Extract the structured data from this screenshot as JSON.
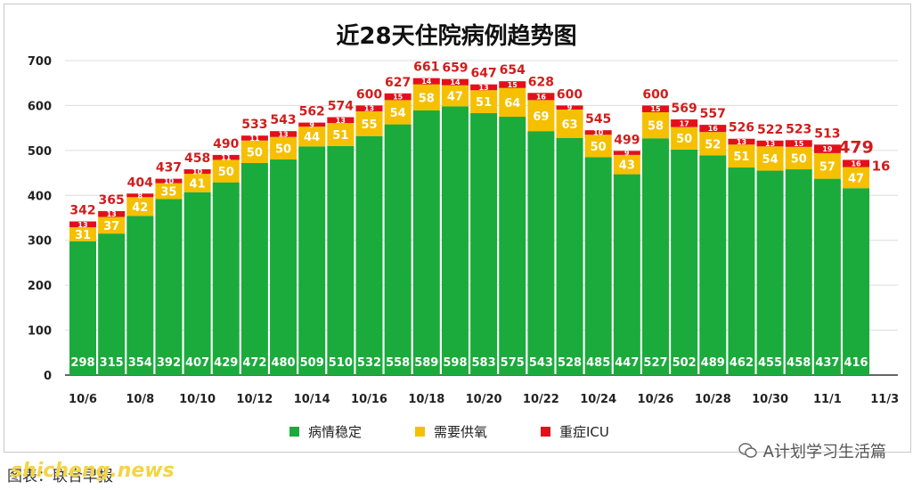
{
  "chart_data": {
    "type": "bar",
    "stacked": true,
    "title": "近28天住院病例趋势图",
    "categories": [
      "10/6",
      "10/7",
      "10/8",
      "10/9",
      "10/10",
      "10/11",
      "10/12",
      "10/13",
      "10/14",
      "10/15",
      "10/16",
      "10/17",
      "10/18",
      "10/19",
      "10/20",
      "10/21",
      "10/22",
      "10/23",
      "10/24",
      "10/25",
      "10/26",
      "10/27",
      "10/28",
      "10/29",
      "10/30",
      "10/31",
      "11/1",
      "11/2"
    ],
    "x_tick_labels": [
      "10/6",
      "10/8",
      "10/10",
      "10/12",
      "10/14",
      "10/16",
      "10/18",
      "10/20",
      "10/22",
      "10/24",
      "10/26",
      "10/28",
      "10/30",
      "11/1",
      "11/3"
    ],
    "ylim": [
      0,
      700
    ],
    "y_ticks": [
      0,
      100,
      200,
      300,
      400,
      500,
      600,
      700
    ],
    "grid": true,
    "legend_position": "bottom",
    "series": [
      {
        "name": "病情稳定",
        "color": "#1aab3c",
        "values": [
          298,
          315,
          354,
          392,
          407,
          429,
          472,
          480,
          509,
          510,
          532,
          558,
          589,
          598,
          583,
          575,
          543,
          528,
          485,
          447,
          527,
          502,
          489,
          462,
          455,
          458,
          437,
          416
        ]
      },
      {
        "name": "需要供氧",
        "color": "#f5c000",
        "values": [
          31,
          37,
          42,
          35,
          41,
          50,
          50,
          50,
          44,
          51,
          55,
          54,
          58,
          47,
          51,
          64,
          69,
          63,
          50,
          43,
          58,
          50,
          52,
          51,
          54,
          50,
          57,
          47
        ]
      },
      {
        "name": "重症ICU",
        "color": "#e3101a",
        "values": [
          13,
          13,
          8,
          10,
          10,
          11,
          11,
          13,
          9,
          13,
          13,
          15,
          14,
          14,
          13,
          15,
          16,
          9,
          10,
          9,
          15,
          17,
          16,
          13,
          13,
          15,
          19,
          16
        ]
      }
    ],
    "totals": [
      342,
      365,
      404,
      437,
      458,
      490,
      533,
      543,
      562,
      574,
      600,
      627,
      661,
      659,
      647,
      654,
      628,
      600,
      545,
      499,
      600,
      569,
      557,
      526,
      522,
      523,
      513,
      479
    ]
  },
  "footer": {
    "left_text": "图表：联合早报",
    "watermark_left": "shicheng.news",
    "watermark_right": "A计划学习生活篇"
  },
  "colors": {
    "total_label": "#d21c1c",
    "axis_text": "#222222"
  }
}
